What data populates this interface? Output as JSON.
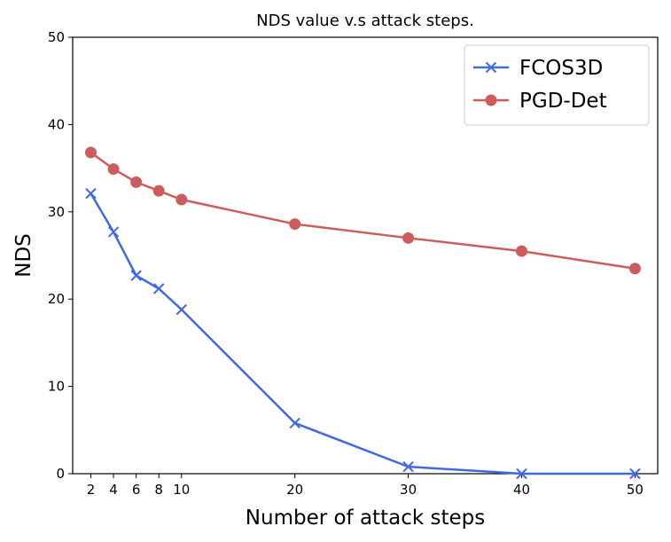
{
  "chart_data": {
    "type": "line",
    "title": "NDS value v.s attack steps.",
    "xlabel": "Number of attack steps",
    "ylabel": "NDS",
    "x": [
      2,
      4,
      6,
      8,
      10,
      20,
      30,
      40,
      50
    ],
    "xticks": [
      2,
      4,
      6,
      8,
      10,
      20,
      30,
      40,
      50
    ],
    "yticks": [
      0,
      10,
      20,
      30,
      40,
      50
    ],
    "xlim": [
      0.4,
      52
    ],
    "ylim": [
      0,
      50
    ],
    "grid": false,
    "legend_position": "top-right",
    "series": [
      {
        "name": "FCOS3D",
        "color": "#4169e1",
        "marker": "x",
        "values": [
          32.1,
          27.7,
          22.7,
          21.2,
          18.8,
          5.8,
          0.8,
          0.0,
          0.0
        ]
      },
      {
        "name": "PGD-Det",
        "color": "#cd5c5c",
        "marker": "circle",
        "values": [
          36.8,
          34.9,
          33.4,
          32.4,
          31.4,
          28.6,
          27.0,
          25.5,
          23.5
        ]
      }
    ]
  }
}
